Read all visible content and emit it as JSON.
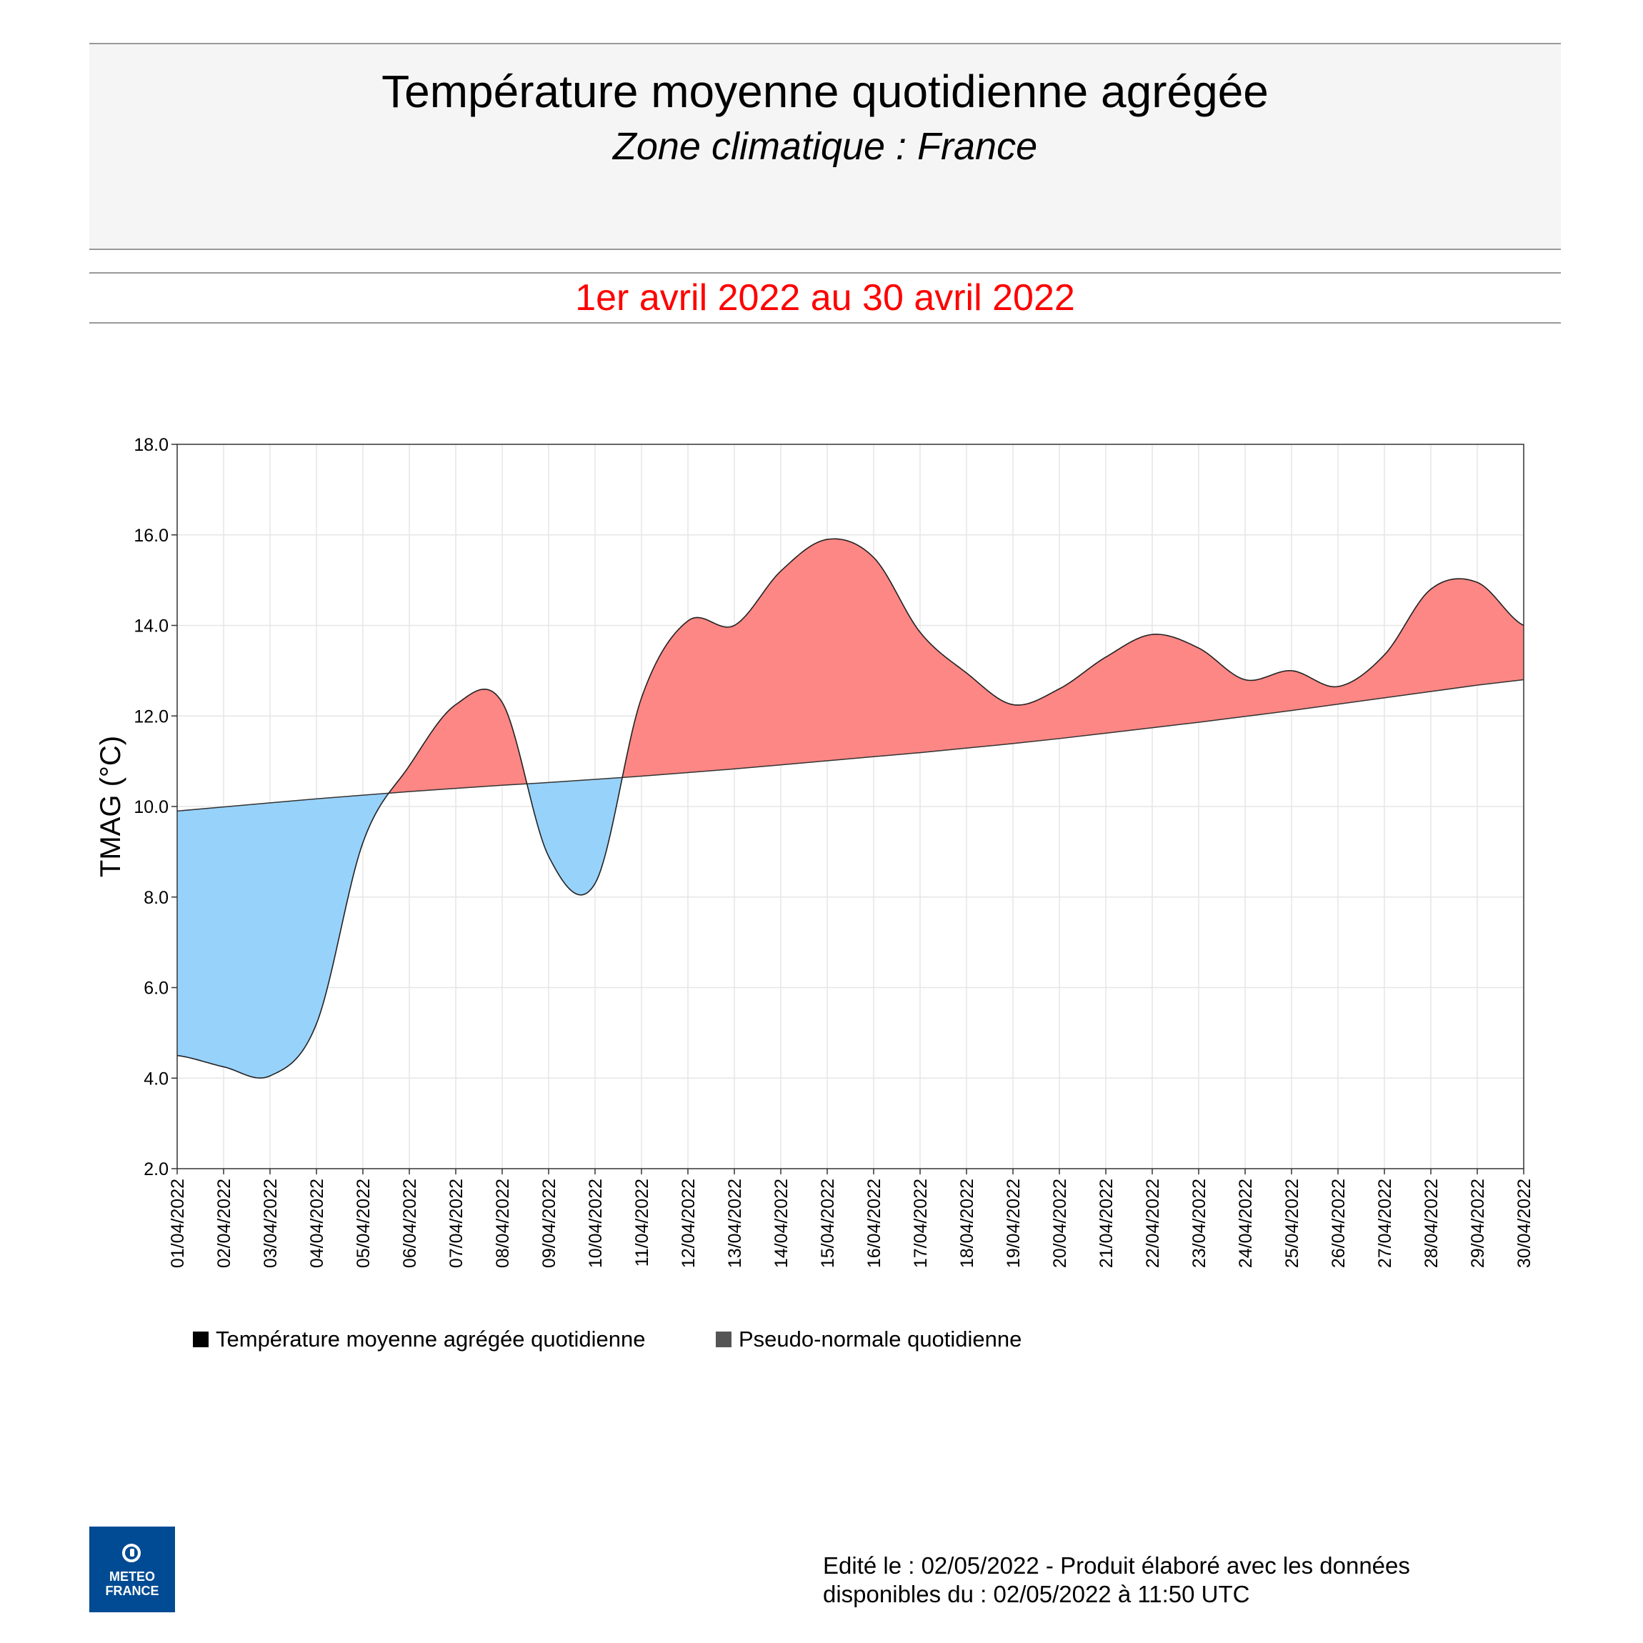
{
  "header": {
    "title": "Température moyenne quotidienne agrégée",
    "subtitle": "Zone climatique : France"
  },
  "period": "1er avril 2022 au 30 avril 2022",
  "colors": {
    "above_normal": "#fc8784",
    "below_normal": "#97d2fb",
    "period_text": "#ff0000",
    "header_bg": "#f5f5f5",
    "logo_bg": "#004b93"
  },
  "chart_data": {
    "type": "area",
    "ylabel": "TMAG (°C)",
    "xlabel": "",
    "ylim": [
      2.0,
      18.0
    ],
    "yticks": [
      "2.0",
      "4.0",
      "6.0",
      "8.0",
      "10.0",
      "12.0",
      "14.0",
      "16.0",
      "18.0"
    ],
    "grid": true,
    "legend_placement": "bottom",
    "x": [
      "01/04/2022",
      "02/04/2022",
      "03/04/2022",
      "04/04/2022",
      "05/04/2022",
      "06/04/2022",
      "07/04/2022",
      "08/04/2022",
      "09/04/2022",
      "10/04/2022",
      "11/04/2022",
      "12/04/2022",
      "13/04/2022",
      "14/04/2022",
      "15/04/2022",
      "16/04/2022",
      "17/04/2022",
      "18/04/2022",
      "19/04/2022",
      "20/04/2022",
      "21/04/2022",
      "22/04/2022",
      "23/04/2022",
      "24/04/2022",
      "25/04/2022",
      "26/04/2022",
      "27/04/2022",
      "28/04/2022",
      "29/04/2022",
      "30/04/2022"
    ],
    "series": [
      {
        "name": "Température moyenne agrégée  quotidienne",
        "values": [
          4.5,
          4.25,
          4.05,
          5.2,
          9.2,
          10.9,
          12.25,
          12.3,
          8.9,
          8.3,
          12.4,
          14.1,
          14.0,
          15.2,
          15.9,
          15.5,
          13.85,
          12.95,
          12.25,
          12.6,
          13.3,
          13.8,
          13.5,
          12.8,
          13.0,
          12.65,
          13.35,
          14.8,
          14.95,
          14.0
        ],
        "color": "#000000"
      },
      {
        "name": "Pseudo-normale quotidienne",
        "values": [
          9.9,
          9.99,
          10.08,
          10.17,
          10.25,
          10.33,
          10.4,
          10.47,
          10.53,
          10.6,
          10.67,
          10.75,
          10.83,
          10.92,
          11.01,
          11.1,
          11.19,
          11.29,
          11.39,
          11.5,
          11.62,
          11.74,
          11.86,
          11.99,
          12.12,
          12.26,
          12.4,
          12.54,
          12.68,
          12.8
        ],
        "color": "#555555"
      }
    ]
  },
  "legend": [
    {
      "label": "Température moyenne agrégée  quotidienne",
      "swatch": "#000000"
    },
    {
      "label": "Pseudo-normale quotidienne",
      "swatch": "#555555"
    }
  ],
  "logo": {
    "line1": "METEO",
    "line2": "FRANCE"
  },
  "footer": {
    "line1": "Edité le : 02/05/2022 - Produit élaboré avec les données",
    "line2": "disponibles du : 02/05/2022 à 11:50 UTC"
  }
}
